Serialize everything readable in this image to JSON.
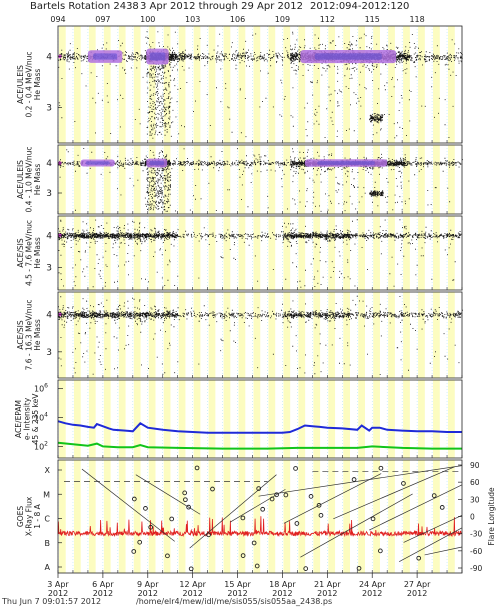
{
  "header": {
    "title": "Bartels Rotation 2438",
    "date_range": "3 Apr 2012 through 29 Apr 2012",
    "doy_range": "2012:094-2012:120"
  },
  "footer": {
    "timestamp": "Thu Jun  7 09:01:57 2012",
    "path": "/home/elr4/mew/idl/me/sis055/sis055aa_2438.ps"
  },
  "doy_ticks": [
    "094",
    "097",
    "100",
    "103",
    "106",
    "109",
    "112",
    "115",
    "118"
  ],
  "date_ticks": [
    {
      "day": "3 Apr",
      "year": "2012"
    },
    {
      "day": "6 Apr",
      "year": "2012"
    },
    {
      "day": "9 Apr",
      "year": "2012"
    },
    {
      "day": "12 Apr",
      "year": "2012"
    },
    {
      "day": "15 Apr",
      "year": "2012"
    },
    {
      "day": "18 Apr",
      "year": "2012"
    },
    {
      "day": "21 Apr",
      "year": "2012"
    },
    {
      "day": "24 Apr",
      "year": "2012"
    },
    {
      "day": "27 Apr",
      "year": "2012"
    }
  ],
  "colors": {
    "background_stripes": "#fcfcc0",
    "highlight": "#b070e0",
    "highlight_core": "#6050d0",
    "epam_high": "#1f2ad8",
    "epam_low": "#11c41a",
    "xray": "#e02020",
    "grid": "#8fd5ef"
  },
  "chart_data": [
    {
      "type": "scatter",
      "panel": "ULEIS 0.2-0.4",
      "ylabel": [
        "ACE/ULEIS",
        "0.2 - 0.4 MeV/nuc",
        "He Mass"
      ],
      "yticks": [
        "4",
        "3"
      ],
      "ylim": [
        2.3,
        4.6
      ],
      "x_range": [
        94,
        121
      ]
    },
    {
      "type": "scatter",
      "panel": "ULEIS 0.4-1.0",
      "ylabel": [
        "ACE/ULEIS",
        "0.4 - 1.0 MeV/nuc",
        "He Mass"
      ],
      "yticks": [
        "4",
        "3"
      ],
      "ylim": [
        2.3,
        4.6
      ],
      "x_range": [
        94,
        121
      ]
    },
    {
      "type": "scatter",
      "panel": "SIS 4.5-7.6",
      "ylabel": [
        "ACE/SIS",
        "4.5 - 7.6 MeV/nuc",
        "He Mass"
      ],
      "yticks": [
        "4",
        "3"
      ],
      "ylim": [
        2.3,
        4.6
      ],
      "x_range": [
        94,
        121
      ]
    },
    {
      "type": "scatter",
      "panel": "SIS 7.6-16.3",
      "ylabel": [
        "ACE/SIS",
        "7.6 - 16.3 MeV/nuc",
        "He Mass"
      ],
      "yticks": [
        "4",
        "3"
      ],
      "ylim": [
        2.3,
        4.6
      ],
      "x_range": [
        94,
        121
      ]
    },
    {
      "type": "line",
      "panel": "EPAM",
      "ylabel": [
        "ACE/EPAM",
        "e- Intensity",
        "45 & 235 keV"
      ],
      "yticks": [
        "10^6",
        "10^4",
        "10^2"
      ],
      "y_scale": "log",
      "ylim_log10": [
        1.2,
        6.6
      ],
      "x_range": [
        94,
        121
      ],
      "series": [
        {
          "x": [
            94,
            94.5,
            95,
            95.5,
            96,
            96.4,
            96.6,
            97.4,
            97.7,
            98.5,
            99,
            99.5,
            100,
            101,
            102,
            103,
            104,
            105,
            106,
            107,
            108,
            109,
            109.5,
            110,
            110.5,
            111,
            111.5,
            112,
            113,
            114,
            114.3,
            114.8,
            115,
            115.5,
            116,
            117,
            118,
            119,
            120,
            121
          ],
          "y": [
            3.75,
            3.6,
            3.5,
            3.45,
            3.35,
            3.3,
            3.55,
            3.25,
            3.15,
            3.1,
            3.05,
            3.6,
            3.3,
            3.15,
            3.05,
            3.0,
            2.95,
            2.95,
            2.95,
            2.95,
            2.95,
            2.95,
            3.0,
            3.2,
            3.45,
            3.4,
            3.35,
            3.3,
            3.25,
            3.15,
            3.45,
            3.1,
            3.3,
            3.3,
            3.15,
            3.1,
            3.05,
            3.05,
            3.0,
            3.0
          ]
        },
        {
          "x": [
            94,
            95,
            96,
            96.6,
            97,
            98,
            99,
            99.5,
            100,
            102,
            105,
            108,
            110,
            112,
            114,
            115,
            117,
            119,
            121
          ],
          "y": [
            2.25,
            2.15,
            2.05,
            2.2,
            2.0,
            1.95,
            1.95,
            2.1,
            1.95,
            1.9,
            1.85,
            1.85,
            1.9,
            1.9,
            1.9,
            2.0,
            1.9,
            1.85,
            1.85
          ]
        }
      ]
    },
    {
      "type": "line",
      "panel": "GOES",
      "ylabel": [
        "GOES",
        "X-Ray Flux",
        "1 - 8 A"
      ],
      "yticks": [
        "X",
        "M",
        "C",
        "B",
        "A"
      ],
      "yticks_right": [
        "90",
        "60",
        "30",
        "0",
        "-30",
        "-60",
        "-90"
      ],
      "ylabel_right": "Flare Longitude",
      "x_range": [
        94,
        121
      ]
    }
  ]
}
